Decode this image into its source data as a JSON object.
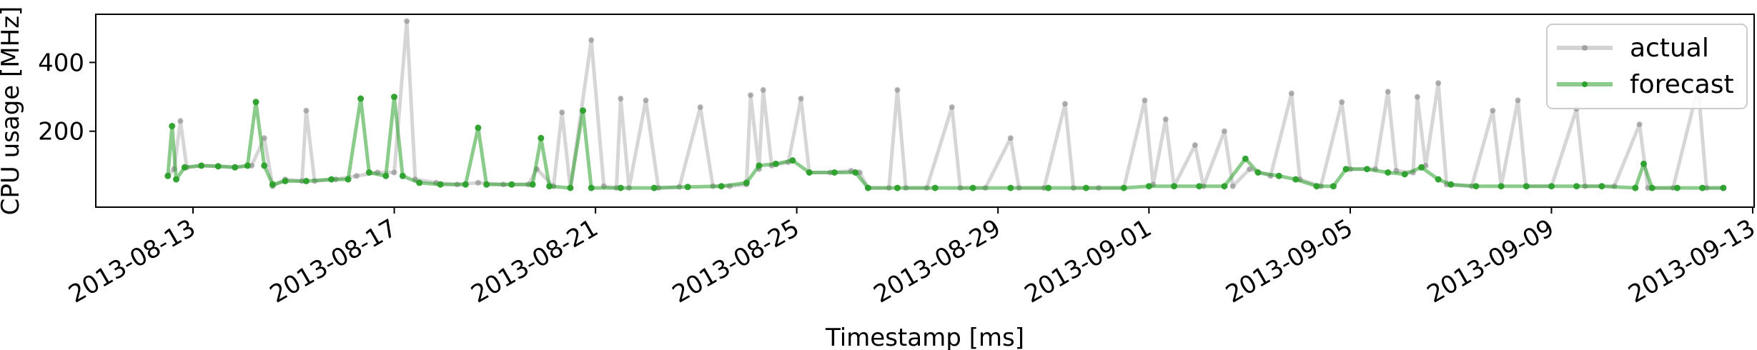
{
  "chart_data": {
    "type": "line",
    "title": "",
    "xlabel": "Timestamp [ms]",
    "ylabel": "CPU usage [MHz]",
    "x_ticks": [
      "2013-08-13",
      "2013-08-17",
      "2013-08-21",
      "2013-08-25",
      "2013-08-29",
      "2013-09-01",
      "2013-09-05",
      "2013-09-09",
      "2013-09-13"
    ],
    "y_ticks": [
      200,
      400
    ],
    "xlim": [
      "2013-08-11 00:00",
      "2013-09-13 00:00"
    ],
    "ylim": [
      0,
      540
    ],
    "grid": false,
    "legend_position": "top-right",
    "colors": {
      "actual": "#808080",
      "forecast": "#2ca02c"
    },
    "series": [
      {
        "name": "actual",
        "points": [
          [
            "2013-08-12 12:00",
            70
          ],
          [
            "2013-08-12 15:00",
            90
          ],
          [
            "2013-08-12 18:00",
            230
          ],
          [
            "2013-08-12 21:00",
            95
          ],
          [
            "2013-08-13 04:00",
            100
          ],
          [
            "2013-08-13 12:00",
            98
          ],
          [
            "2013-08-13 20:00",
            95
          ],
          [
            "2013-08-14 04:00",
            100
          ],
          [
            "2013-08-14 10:00",
            180
          ],
          [
            "2013-08-14 14:00",
            40
          ],
          [
            "2013-08-14 20:00",
            60
          ],
          [
            "2013-08-15 04:00",
            55
          ],
          [
            "2013-08-15 06:00",
            260
          ],
          [
            "2013-08-15 10:00",
            55
          ],
          [
            "2013-08-15 20:00",
            60
          ],
          [
            "2013-08-16 06:00",
            70
          ],
          [
            "2013-08-16 16:00",
            80
          ],
          [
            "2013-08-17 00:00",
            80
          ],
          [
            "2013-08-17 06:00",
            520
          ],
          [
            "2013-08-17 10:00",
            60
          ],
          [
            "2013-08-17 20:00",
            50
          ],
          [
            "2013-08-18 06:00",
            45
          ],
          [
            "2013-08-18 16:00",
            50
          ],
          [
            "2013-08-19 04:00",
            45
          ],
          [
            "2013-08-19 16:00",
            45
          ],
          [
            "2013-08-19 20:00",
            90
          ],
          [
            "2013-08-20 04:00",
            40
          ],
          [
            "2013-08-20 08:00",
            255
          ],
          [
            "2013-08-20 12:00",
            35
          ],
          [
            "2013-08-20 22:00",
            465
          ],
          [
            "2013-08-21 04:00",
            40
          ],
          [
            "2013-08-21 10:00",
            35
          ],
          [
            "2013-08-21 12:00",
            295
          ],
          [
            "2013-08-21 16:00",
            35
          ],
          [
            "2013-08-22 00:00",
            290
          ],
          [
            "2013-08-22 06:00",
            35
          ],
          [
            "2013-08-22 16:00",
            38
          ],
          [
            "2013-08-23 02:00",
            270
          ],
          [
            "2013-08-23 08:00",
            40
          ],
          [
            "2013-08-23 16:00",
            40
          ],
          [
            "2013-08-24 00:00",
            45
          ],
          [
            "2013-08-24 02:00",
            305
          ],
          [
            "2013-08-24 06:00",
            90
          ],
          [
            "2013-08-24 08:00",
            320
          ],
          [
            "2013-08-24 12:00",
            100
          ],
          [
            "2013-08-24 20:00",
            110
          ],
          [
            "2013-08-25 02:00",
            295
          ],
          [
            "2013-08-25 06:00",
            80
          ],
          [
            "2013-08-25 16:00",
            80
          ],
          [
            "2013-08-26 02:00",
            85
          ],
          [
            "2013-08-26 06:00",
            80
          ],
          [
            "2013-08-26 10:00",
            35
          ],
          [
            "2013-08-26 20:00",
            35
          ],
          [
            "2013-08-27 00:00",
            320
          ],
          [
            "2013-08-27 04:00",
            35
          ],
          [
            "2013-08-27 14:00",
            35
          ],
          [
            "2013-08-28 02:00",
            270
          ],
          [
            "2013-08-28 06:00",
            35
          ],
          [
            "2013-08-28 18:00",
            35
          ],
          [
            "2013-08-29 06:00",
            180
          ],
          [
            "2013-08-29 10:00",
            35
          ],
          [
            "2013-08-29 22:00",
            35
          ],
          [
            "2013-08-30 08:00",
            280
          ],
          [
            "2013-08-30 12:00",
            35
          ],
          [
            "2013-08-31 00:00",
            35
          ],
          [
            "2013-08-31 12:00",
            35
          ],
          [
            "2013-08-31 22:00",
            290
          ],
          [
            "2013-09-01 02:00",
            45
          ],
          [
            "2013-09-01 08:00",
            235
          ],
          [
            "2013-09-01 12:00",
            40
          ],
          [
            "2013-09-01 22:00",
            160
          ],
          [
            "2013-09-02 02:00",
            40
          ],
          [
            "2013-09-02 12:00",
            200
          ],
          [
            "2013-09-02 16:00",
            40
          ],
          [
            "2013-09-03 00:00",
            90
          ],
          [
            "2013-09-03 10:00",
            70
          ],
          [
            "2013-09-03 20:00",
            310
          ],
          [
            "2013-09-04 00:00",
            60
          ],
          [
            "2013-09-04 10:00",
            40
          ],
          [
            "2013-09-04 20:00",
            285
          ],
          [
            "2013-09-05 00:00",
            90
          ],
          [
            "2013-09-05 12:00",
            90
          ],
          [
            "2013-09-05 18:00",
            315
          ],
          [
            "2013-09-05 22:00",
            85
          ],
          [
            "2013-09-06 06:00",
            80
          ],
          [
            "2013-09-06 08:00",
            300
          ],
          [
            "2013-09-06 12:00",
            100
          ],
          [
            "2013-09-06 18:00",
            340
          ],
          [
            "2013-09-06 22:00",
            45
          ],
          [
            "2013-09-07 10:00",
            40
          ],
          [
            "2013-09-07 20:00",
            260
          ],
          [
            "2013-09-08 00:00",
            40
          ],
          [
            "2013-09-08 08:00",
            290
          ],
          [
            "2013-09-08 12:00",
            40
          ],
          [
            "2013-09-09 00:00",
            40
          ],
          [
            "2013-09-09 12:00",
            265
          ],
          [
            "2013-09-09 16:00",
            40
          ],
          [
            "2013-09-10 06:00",
            40
          ],
          [
            "2013-09-10 18:00",
            220
          ],
          [
            "2013-09-10 22:00",
            35
          ],
          [
            "2013-09-11 10:00",
            35
          ],
          [
            "2013-09-11 22:00",
            330
          ],
          [
            "2013-09-12 02:00",
            35
          ],
          [
            "2013-09-12 10:00",
            35
          ]
        ]
      },
      {
        "name": "forecast",
        "points": [
          [
            "2013-08-12 12:00",
            70
          ],
          [
            "2013-08-12 14:00",
            215
          ],
          [
            "2013-08-12 16:00",
            60
          ],
          [
            "2013-08-12 20:00",
            95
          ],
          [
            "2013-08-13 04:00",
            100
          ],
          [
            "2013-08-13 12:00",
            98
          ],
          [
            "2013-08-13 20:00",
            95
          ],
          [
            "2013-08-14 02:00",
            100
          ],
          [
            "2013-08-14 06:00",
            285
          ],
          [
            "2013-08-14 10:00",
            100
          ],
          [
            "2013-08-14 14:00",
            45
          ],
          [
            "2013-08-14 20:00",
            55
          ],
          [
            "2013-08-15 06:00",
            55
          ],
          [
            "2013-08-15 18:00",
            60
          ],
          [
            "2013-08-16 02:00",
            60
          ],
          [
            "2013-08-16 08:00",
            295
          ],
          [
            "2013-08-16 12:00",
            80
          ],
          [
            "2013-08-16 20:00",
            70
          ],
          [
            "2013-08-17 00:00",
            300
          ],
          [
            "2013-08-17 04:00",
            70
          ],
          [
            "2013-08-17 12:00",
            50
          ],
          [
            "2013-08-17 22:00",
            45
          ],
          [
            "2013-08-18 10:00",
            45
          ],
          [
            "2013-08-18 16:00",
            210
          ],
          [
            "2013-08-18 20:00",
            45
          ],
          [
            "2013-08-19 08:00",
            45
          ],
          [
            "2013-08-19 18:00",
            45
          ],
          [
            "2013-08-19 22:00",
            180
          ],
          [
            "2013-08-20 02:00",
            40
          ],
          [
            "2013-08-20 12:00",
            35
          ],
          [
            "2013-08-20 18:00",
            260
          ],
          [
            "2013-08-20 22:00",
            35
          ],
          [
            "2013-08-21 12:00",
            35
          ],
          [
            "2013-08-22 04:00",
            35
          ],
          [
            "2013-08-22 20:00",
            38
          ],
          [
            "2013-08-23 12:00",
            40
          ],
          [
            "2013-08-24 00:00",
            50
          ],
          [
            "2013-08-24 06:00",
            100
          ],
          [
            "2013-08-24 14:00",
            105
          ],
          [
            "2013-08-24 22:00",
            115
          ],
          [
            "2013-08-25 06:00",
            80
          ],
          [
            "2013-08-25 18:00",
            80
          ],
          [
            "2013-08-26 04:00",
            80
          ],
          [
            "2013-08-26 10:00",
            35
          ],
          [
            "2013-08-27 00:00",
            35
          ],
          [
            "2013-08-27 18:00",
            35
          ],
          [
            "2013-08-28 12:00",
            35
          ],
          [
            "2013-08-29 06:00",
            35
          ],
          [
            "2013-08-30 00:00",
            35
          ],
          [
            "2013-08-30 18:00",
            35
          ],
          [
            "2013-08-31 12:00",
            35
          ],
          [
            "2013-09-01 00:00",
            40
          ],
          [
            "2013-09-01 12:00",
            40
          ],
          [
            "2013-09-02 00:00",
            40
          ],
          [
            "2013-09-02 12:00",
            40
          ],
          [
            "2013-09-02 22:00",
            120
          ],
          [
            "2013-09-03 04:00",
            80
          ],
          [
            "2013-09-03 14:00",
            70
          ],
          [
            "2013-09-03 22:00",
            60
          ],
          [
            "2013-09-04 08:00",
            40
          ],
          [
            "2013-09-04 16:00",
            40
          ],
          [
            "2013-09-04 22:00",
            90
          ],
          [
            "2013-09-05 08:00",
            90
          ],
          [
            "2013-09-05 18:00",
            80
          ],
          [
            "2013-09-06 02:00",
            75
          ],
          [
            "2013-09-06 10:00",
            95
          ],
          [
            "2013-09-06 18:00",
            60
          ],
          [
            "2013-09-07 00:00",
            45
          ],
          [
            "2013-09-07 12:00",
            40
          ],
          [
            "2013-09-08 00:00",
            40
          ],
          [
            "2013-09-08 12:00",
            40
          ],
          [
            "2013-09-09 00:00",
            40
          ],
          [
            "2013-09-09 12:00",
            40
          ],
          [
            "2013-09-10 00:00",
            40
          ],
          [
            "2013-09-10 16:00",
            35
          ],
          [
            "2013-09-10 20:00",
            105
          ],
          [
            "2013-09-11 00:00",
            35
          ],
          [
            "2013-09-11 12:00",
            35
          ],
          [
            "2013-09-12 00:00",
            35
          ],
          [
            "2013-09-12 10:00",
            35
          ]
        ]
      }
    ]
  }
}
